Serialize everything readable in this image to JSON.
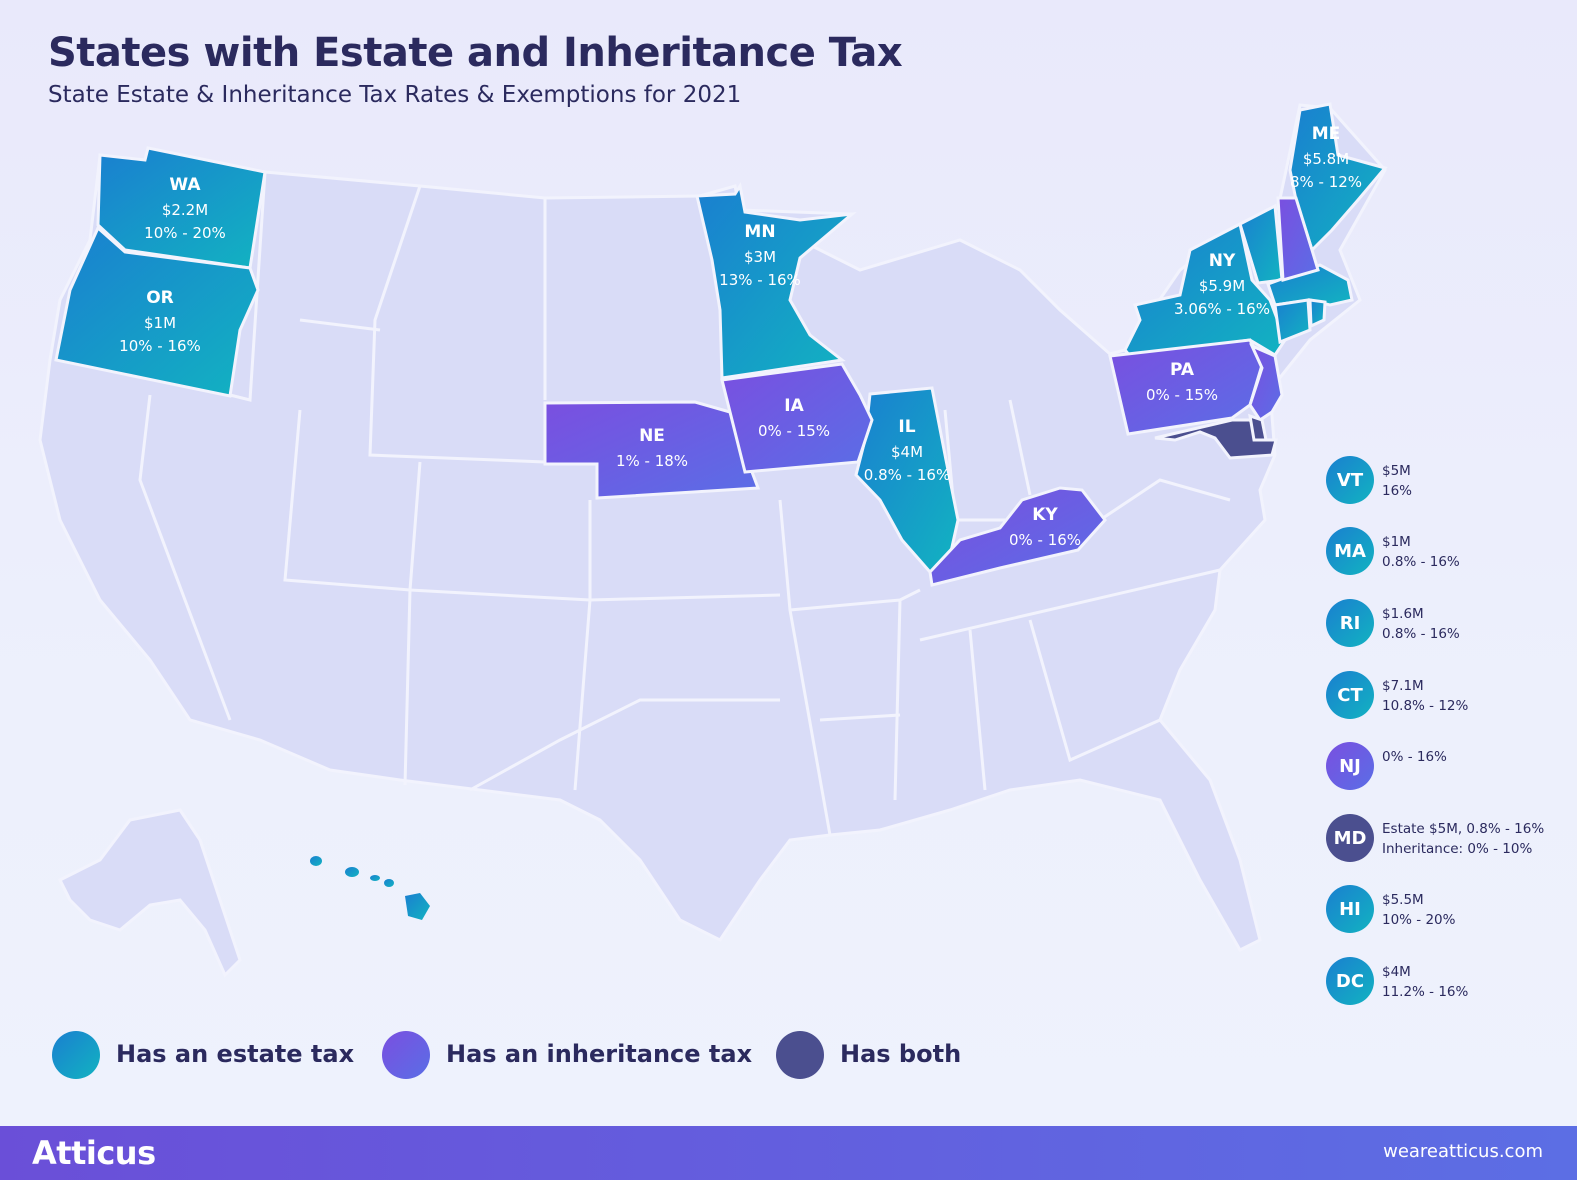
{
  "header": {
    "title": "States with Estate and Inheritance Tax",
    "subtitle": "State Estate & Inheritance Tax Rates & Exemptions for 2021"
  },
  "colors": {
    "estate_start": "#1a7fd0",
    "estate_end": "#12b3c1",
    "inheritance_start": "#7a4fe0",
    "inheritance_end": "#5a6ee6",
    "both": "#4b4f8f",
    "base_state": "#d9dcf7",
    "state_border": "#f2f3fd"
  },
  "map_states": [
    {
      "abbr": "WA",
      "lines": [
        "$2.2M",
        "10% - 20%"
      ],
      "category": "estate"
    },
    {
      "abbr": "OR",
      "lines": [
        "$1M",
        "10% - 16%"
      ],
      "category": "estate"
    },
    {
      "abbr": "MN",
      "lines": [
        "$3M",
        "13% - 16%"
      ],
      "category": "estate"
    },
    {
      "abbr": "NE",
      "lines": [
        "1% - 18%"
      ],
      "category": "inheritance"
    },
    {
      "abbr": "IA",
      "lines": [
        "0% - 15%"
      ],
      "category": "inheritance"
    },
    {
      "abbr": "IL",
      "lines": [
        "$4M",
        "0.8% - 16%"
      ],
      "category": "estate"
    },
    {
      "abbr": "KY",
      "lines": [
        "0% - 16%"
      ],
      "category": "inheritance"
    },
    {
      "abbr": "PA",
      "lines": [
        "0% - 15%"
      ],
      "category": "inheritance"
    },
    {
      "abbr": "NY",
      "lines": [
        "$5.9M",
        "3.06% - 16%"
      ],
      "category": "estate"
    },
    {
      "abbr": "ME",
      "lines": [
        "$5.8M",
        "8% - 12%"
      ],
      "category": "estate"
    }
  ],
  "side_list": [
    {
      "abbr": "VT",
      "line1": "$5M",
      "line2": "16%",
      "category": "estate"
    },
    {
      "abbr": "MA",
      "line1": "$1M",
      "line2": "0.8% - 16%",
      "category": "estate"
    },
    {
      "abbr": "RI",
      "line1": "$1.6M",
      "line2": "0.8% - 16%",
      "category": "estate"
    },
    {
      "abbr": "CT",
      "line1": "$7.1M",
      "line2": "10.8% - 12%",
      "category": "estate"
    },
    {
      "abbr": "NJ",
      "line1": "0% - 16%",
      "line2": "",
      "category": "inheritance"
    },
    {
      "abbr": "MD",
      "line1": "Estate $5M, 0.8% - 16%",
      "line2": "Inheritance: 0% - 10%",
      "category": "both"
    },
    {
      "abbr": "HI",
      "line1": "$5.5M",
      "line2": "10% - 20%",
      "category": "estate"
    },
    {
      "abbr": "DC",
      "line1": "$4M",
      "line2": "11.2% - 16%",
      "category": "estate"
    }
  ],
  "legend": [
    {
      "label": "Has an estate tax",
      "category": "estate"
    },
    {
      "label": "Has an inheritance tax",
      "category": "inheritance"
    },
    {
      "label": "Has both",
      "category": "both"
    }
  ],
  "footer": {
    "brand": "Atticus",
    "url": "weareatticus.com"
  }
}
